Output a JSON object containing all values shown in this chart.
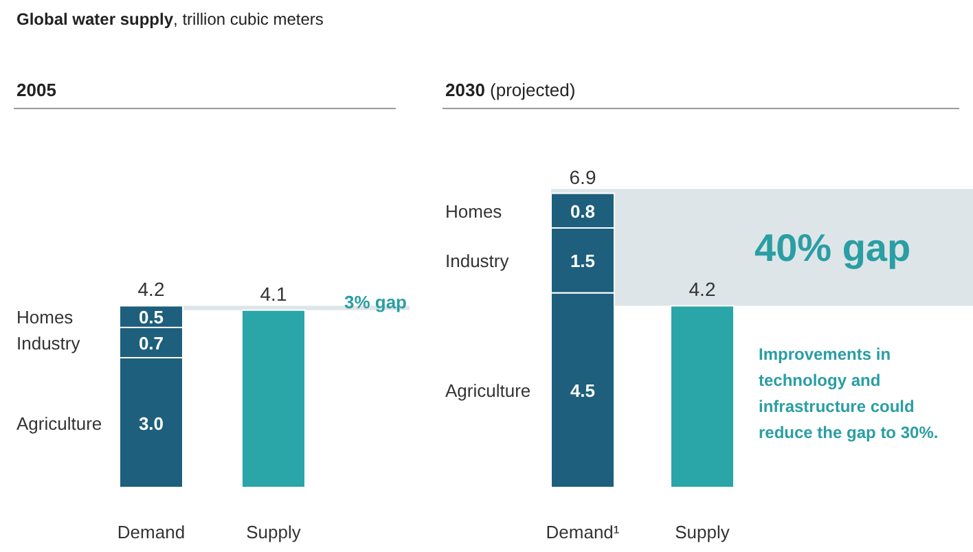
{
  "chart_data": [
    {
      "type": "bar",
      "stacked": true,
      "title": "2005",
      "categories": [
        "Demand",
        "Supply"
      ],
      "tick_labels": "x",
      "series": [
        {
          "name": "Agriculture",
          "color": "#1d5f7c",
          "values": [
            3.0,
            null
          ],
          "value_labels": [
            "3.0",
            null
          ]
        },
        {
          "name": "Industry",
          "color": "#1d5f7c",
          "values": [
            0.7,
            null
          ],
          "value_labels": [
            "0.7",
            null
          ]
        },
        {
          "name": "Homes",
          "color": "#1d5f7c",
          "values": [
            0.5,
            null
          ],
          "value_labels": [
            "0.5",
            null
          ]
        },
        {
          "color": "#2aa5a8",
          "values": [
            null,
            4.1
          ]
        }
      ],
      "totals": [
        "4.2",
        "4.1"
      ],
      "bands": [
        {
          "axis": "y",
          "from": 4.1,
          "to": 4.2,
          "label": "3% gap",
          "color": "#dde5e8"
        }
      ],
      "annotations": [
        "Global water supply, trillion cubic meters"
      ]
    },
    {
      "type": "bar",
      "stacked": true,
      "title": "2030",
      "subtitle": "(projected)",
      "categories": [
        "Demand¹",
        "Supply"
      ],
      "tick_labels": "x",
      "series": [
        {
          "name": "Agriculture",
          "color": "#1d5f7c",
          "values": [
            4.5,
            null
          ],
          "value_labels": [
            "4.5",
            null
          ]
        },
        {
          "name": "Industry",
          "color": "#1d5f7c",
          "values": [
            1.5,
            null
          ],
          "value_labels": [
            "1.5",
            null
          ]
        },
        {
          "name": "Homes",
          "color": "#1d5f7c",
          "values": [
            0.8,
            null
          ],
          "value_labels": [
            "0.8",
            null
          ]
        },
        {
          "color": "#2aa5a8",
          "values": [
            null,
            4.2
          ]
        }
      ],
      "totals": [
        "6.9",
        "4.2"
      ],
      "bands": [
        {
          "axis": "y",
          "from": 4.2,
          "to": 6.9,
          "label": "40% gap",
          "color": "#dde5e8"
        }
      ],
      "annotations": [
        "Improvements in technology and infrastructure could reduce the gap to 30%."
      ]
    }
  ]
}
